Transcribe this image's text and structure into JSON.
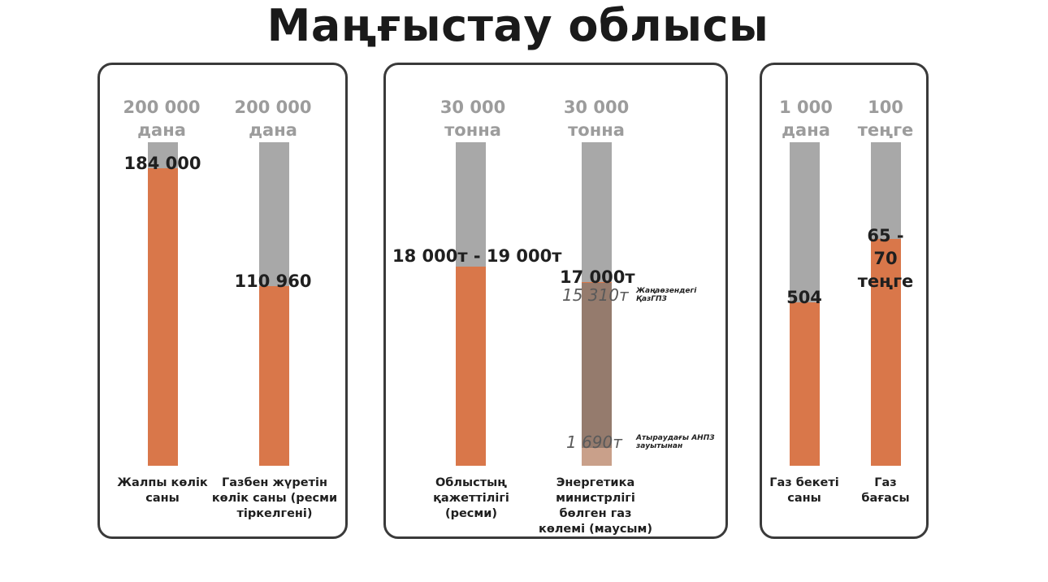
{
  "title": "Маңғыстау облысы",
  "chart_data": [
    {
      "type": "bar",
      "categories": [
        "Жалпы көлік саны",
        "Газбен жүретін көлік саны (ресми тіркелгені)"
      ],
      "max_labels": [
        "200 000 дана",
        "200 000 дана"
      ],
      "values": [
        184000,
        110960
      ],
      "value_labels": [
        "184 000",
        "110 960"
      ],
      "ylim": [
        0,
        200000
      ],
      "colors": {
        "filled": "#d9774a",
        "track": "#a8a8a8"
      }
    },
    {
      "type": "bar",
      "categories": [
        "Облыстың қажеттілігі (ресми)",
        "Энергетика министрлігі бөлген газ көлемі (маусым)"
      ],
      "max_labels": [
        "30 000 тонна",
        "30 000 тонна"
      ],
      "values": [
        18500,
        17000
      ],
      "value_labels": [
        "18 000т - 19 000т",
        "17 000т"
      ],
      "ylim": [
        0,
        30000
      ],
      "breakdown": [
        {
          "value": 15310,
          "label": "15 310т",
          "note": "Жаңаөзендегі ҚазГПЗ",
          "color": "#957b6d"
        },
        {
          "value": 1690,
          "label": "1 690т",
          "note": "Атыраудағы АНПЗ зауытынан",
          "color": "#c9a08a"
        }
      ],
      "colors": {
        "filled": "#d9774a",
        "track": "#a8a8a8"
      }
    },
    {
      "type": "bar",
      "categories": [
        "Газ бекеті саны",
        "Газ бағасы"
      ],
      "max_labels": [
        "1 000 дана",
        "100 теңге"
      ],
      "values": [
        504,
        70
      ],
      "value_labels": [
        "504",
        "65 - 70 теңге"
      ],
      "ylim": [
        [
          0,
          1000
        ],
        [
          0,
          100
        ]
      ],
      "colors": {
        "filled": "#d9774a",
        "track": "#a8a8a8"
      }
    }
  ]
}
